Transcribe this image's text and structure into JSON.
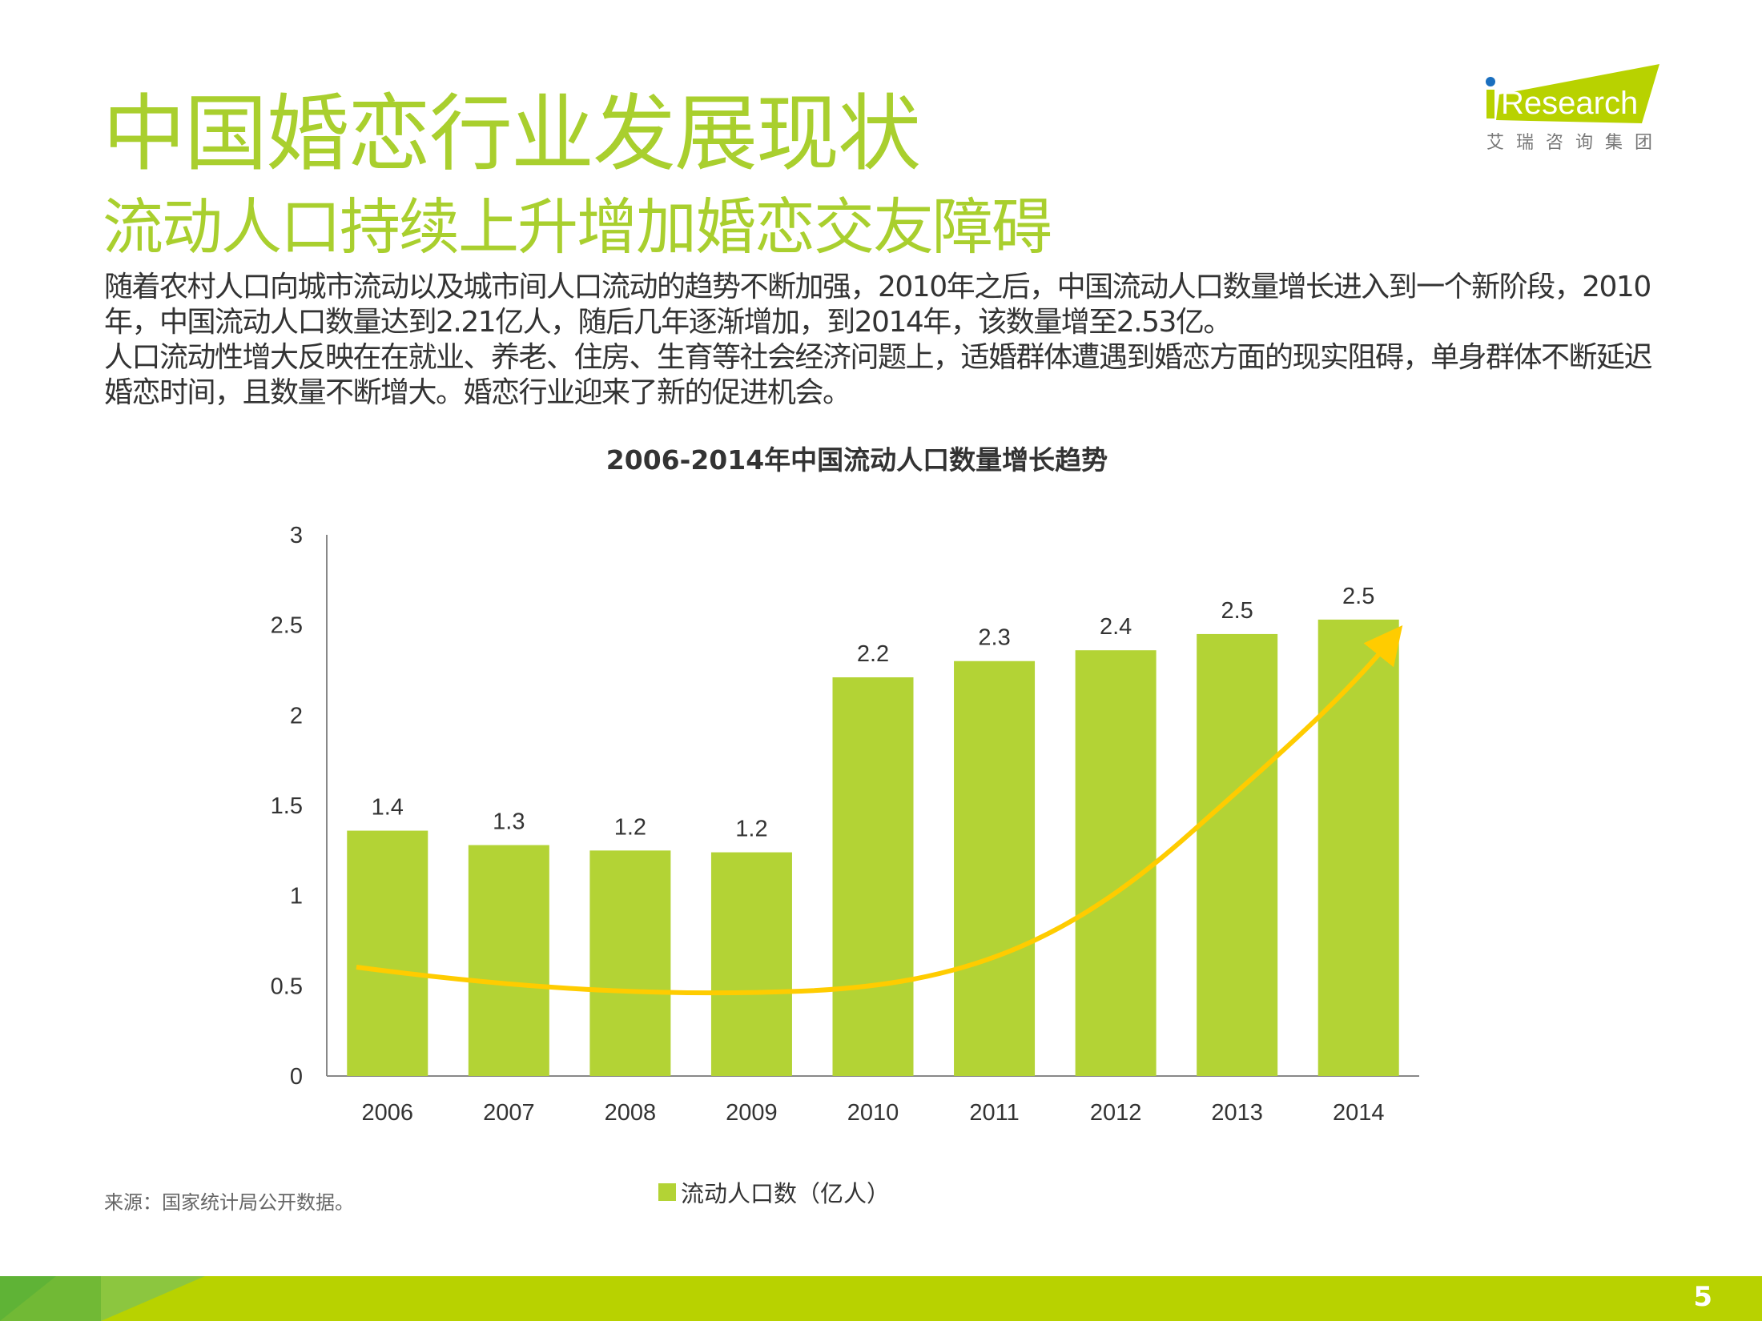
{
  "header": {
    "title": "中国婚恋行业发展现状",
    "subtitle": "流动人口持续上升增加婚恋交友障碍",
    "logo_text": "iResearch",
    "logo_cn": "艾瑞咨询集团"
  },
  "body": {
    "paragraph1": "随着农村人口向城市流动以及城市间人口流动的趋势不断加强，2010年之后，中国流动人口数量增长进入到一个新阶段，2010年，中国流动人口数量达到2.21亿人，随后几年逐渐增加，到2014年，该数量增至2.53亿。",
    "paragraph2": "人口流动性增大反映在在就业、养老、住房、生育等社会经济问题上，适婚群体遭遇到婚恋方面的现实阻碍，单身群体不断延迟婚恋时间，且数量不断增大。婚恋行业迎来了新的促进机会。"
  },
  "chart_data": {
    "type": "bar",
    "title": "2006-2014年中国流动人口数量增长趋势",
    "categories": [
      "2006",
      "2007",
      "2008",
      "2009",
      "2010",
      "2011",
      "2012",
      "2013",
      "2014"
    ],
    "series": [
      {
        "name": "流动人口数（亿人）",
        "values": [
          1.36,
          1.28,
          1.25,
          1.24,
          2.21,
          2.3,
          2.36,
          2.45,
          2.53
        ],
        "labels": [
          "1.4",
          "1.3",
          "1.2",
          "1.2",
          "2.2",
          "2.3",
          "2.4",
          "2.5",
          "2.5"
        ]
      }
    ],
    "ylim": [
      0,
      3
    ],
    "yticks": [
      "0",
      "0.5",
      "1",
      "1.5",
      "2",
      "2.5",
      "3"
    ],
    "legend": "bottom",
    "annotation": "upward trend arrow",
    "colors": {
      "bar": "#b3d335",
      "arrow": "#ffcc00"
    }
  },
  "footer": {
    "source": "来源：国家统计局公开数据。",
    "page_number": "5"
  }
}
